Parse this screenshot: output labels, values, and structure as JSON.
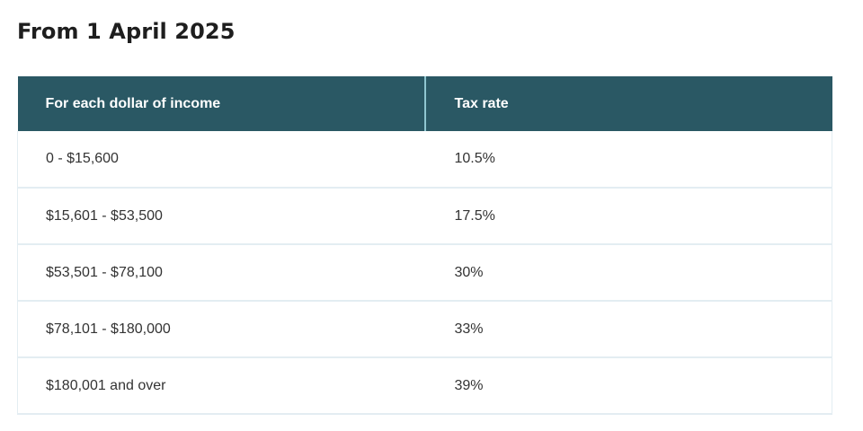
{
  "heading": "From 1 April 2025",
  "table": {
    "headers": [
      "For each dollar of income",
      "Tax rate"
    ],
    "rows": [
      {
        "income": "0 - $15,600",
        "rate": "10.5%"
      },
      {
        "income": "$15,601 - $53,500",
        "rate": "17.5%"
      },
      {
        "income": "$53,501 - $78,100",
        "rate": "30%"
      },
      {
        "income": "$78,101 - $180,000",
        "rate": "33%"
      },
      {
        "income": "$180,001 and over",
        "rate": "39%"
      }
    ]
  },
  "colors": {
    "header_background": "#2a5864",
    "header_text": "#ffffff",
    "row_border": "#e3edf2",
    "header_divider": "#8fc6d0"
  }
}
